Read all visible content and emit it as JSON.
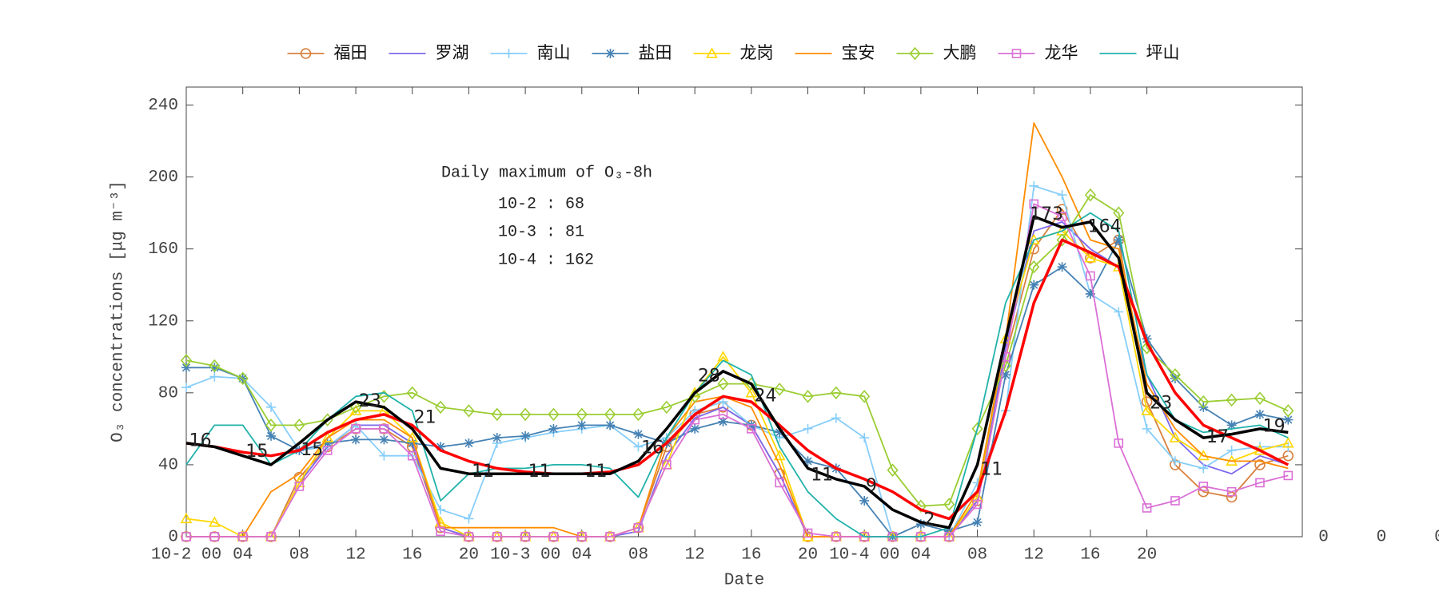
{
  "chart_data": {
    "type": "line",
    "x_label": "Date",
    "y_label": "O₃ concentrations [μg m⁻³]",
    "legend": "top",
    "text_box": {
      "title": "Daily maximum of O₃-8h",
      "lines": [
        "10-2 : 68",
        "10-3 : 81",
        "10-4 : 162"
      ]
    },
    "xlim": [
      0,
      79
    ],
    "ylim": [
      0,
      250
    ],
    "yticks": [
      0,
      40,
      80,
      120,
      160,
      200,
      240
    ],
    "xticks": [
      {
        "value": 0,
        "label": "10-2 00"
      },
      {
        "value": 4,
        "label": "04"
      },
      {
        "value": 8,
        "label": "08"
      },
      12,
      16,
      20,
      {
        "value": 24,
        "label": "10-3 00"
      },
      {
        "value": 28,
        "label": "04"
      },
      {
        "value": 32,
        "label": "08"
      },
      {
        "value": 36,
        "label": "12"
      },
      {
        "value": 40,
        "label": "16"
      },
      {
        "value": 44,
        "label": "20"
      },
      {
        "value": 48,
        "label": "10-4 00"
      },
      {
        "value": 52,
        "label": "04"
      },
      {
        "value": 56,
        "label": "08"
      },
      {
        "value": 60,
        "label": "12"
      },
      {
        "value": 64,
        "label": "16"
      },
      {
        "value": 68,
        "label": "20"
      }
    ],
    "extra_labels": [
      {
        "text": "0",
        "x": 80.5,
        "y": 0
      },
      {
        "text": "0",
        "x": 84.6,
        "y": 0
      },
      {
        "text": "0",
        "x": 88.7,
        "y": 0
      }
    ],
    "annotations": [
      {
        "text": "16",
        "x": 1,
        "y": 53
      },
      {
        "text": "15",
        "x": 5,
        "y": 47
      },
      {
        "text": "15",
        "x": 8.9,
        "y": 48
      },
      {
        "text": "23",
        "x": 13,
        "y": 75
      },
      {
        "text": "21",
        "x": 16.9,
        "y": 66
      },
      {
        "text": "11",
        "x": 21,
        "y": 36
      },
      {
        "text": "11",
        "x": 25,
        "y": 36
      },
      {
        "text": "11",
        "x": 29,
        "y": 36
      },
      {
        "text": "16",
        "x": 33,
        "y": 49
      },
      {
        "text": "28",
        "x": 37,
        "y": 89
      },
      {
        "text": "24",
        "x": 41,
        "y": 78
      },
      {
        "text": "11",
        "x": 45,
        "y": 34
      },
      {
        "text": "9",
        "x": 48.5,
        "y": 28
      },
      {
        "text": "2",
        "x": 52.6,
        "y": 9
      },
      {
        "text": "11",
        "x": 57,
        "y": 37
      },
      {
        "text": "173",
        "x": 60.9,
        "y": 179
      },
      {
        "text": "164",
        "x": 65,
        "y": 172
      },
      {
        "text": "23",
        "x": 69,
        "y": 74
      },
      {
        "text": "17",
        "x": 73,
        "y": 55
      },
      {
        "text": "19",
        "x": 77,
        "y": 61
      }
    ],
    "x": [
      0,
      2,
      4,
      6,
      8,
      10,
      12,
      14,
      16,
      18,
      20,
      22,
      24,
      26,
      28,
      30,
      32,
      34,
      36,
      38,
      40,
      42,
      44,
      46,
      48,
      50,
      52,
      54,
      56,
      58,
      60,
      62,
      64,
      66,
      68,
      70,
      72,
      74,
      76,
      78
    ],
    "series": [
      {
        "name": "福田",
        "color": "#d9803e",
        "marker": "o",
        "values": [
          0,
          0,
          0,
          0,
          33,
          50,
          60,
          60,
          50,
          5,
          0,
          0,
          0,
          0,
          0,
          0,
          5,
          50,
          68,
          72,
          62,
          35,
          0,
          0,
          0,
          0,
          0,
          0,
          20,
          100,
          160,
          182,
          155,
          165,
          75,
          40,
          25,
          22,
          40,
          45
        ]
      },
      {
        "name": "罗湖",
        "color": "#7b68ee",
        "marker": "",
        "values": [
          0,
          0,
          0,
          0,
          30,
          50,
          62,
          62,
          52,
          5,
          0,
          0,
          0,
          0,
          0,
          0,
          3,
          45,
          66,
          72,
          62,
          35,
          0,
          0,
          0,
          0,
          0,
          0,
          20,
          105,
          170,
          175,
          160,
          150,
          90,
          55,
          40,
          35,
          45,
          40
        ]
      },
      {
        "name": "南山",
        "color": "#87cefa",
        "marker": "+",
        "values": [
          83,
          89,
          88,
          72,
          48,
          50,
          62,
          45,
          45,
          15,
          10,
          52,
          55,
          58,
          60,
          62,
          50,
          55,
          70,
          75,
          62,
          55,
          60,
          66,
          55,
          0,
          0,
          0,
          30,
          70,
          195,
          190,
          135,
          125,
          60,
          42,
          38,
          48,
          50,
          50
        ]
      },
      {
        "name": "盐田",
        "color": "#4682b4",
        "marker": "*",
        "values": [
          94,
          94,
          88,
          56,
          48,
          52,
          54,
          54,
          52,
          50,
          52,
          55,
          56,
          60,
          62,
          62,
          57,
          52,
          60,
          64,
          62,
          58,
          42,
          38,
          20,
          0,
          7,
          3,
          8,
          90,
          140,
          150,
          135,
          165,
          110,
          88,
          72,
          62,
          68,
          65
        ]
      },
      {
        "name": "龙岗",
        "color": "#ffd700",
        "marker": "^",
        "values": [
          10,
          8,
          0,
          0,
          30,
          55,
          70,
          70,
          55,
          8,
          0,
          0,
          0,
          0,
          0,
          0,
          5,
          40,
          80,
          100,
          80,
          45,
          0,
          0,
          0,
          0,
          0,
          0,
          22,
          110,
          165,
          170,
          155,
          150,
          70,
          55,
          45,
          42,
          48,
          52
        ]
      },
      {
        "name": "宝安",
        "color": "#ff8c00",
        "marker": "",
        "values": [
          0,
          0,
          0,
          25,
          35,
          55,
          65,
          65,
          55,
          5,
          5,
          5,
          5,
          5,
          0,
          0,
          5,
          55,
          75,
          78,
          72,
          40,
          0,
          0,
          0,
          0,
          0,
          0,
          25,
          110,
          230,
          200,
          165,
          160,
          85,
          60,
          45,
          42,
          42,
          38
        ]
      },
      {
        "name": "大鹏",
        "color": "#9acd32",
        "marker": "d",
        "values": [
          98,
          95,
          88,
          62,
          62,
          65,
          72,
          78,
          80,
          72,
          70,
          68,
          68,
          68,
          68,
          68,
          68,
          72,
          78,
          85,
          85,
          82,
          78,
          80,
          78,
          37,
          17,
          18,
          60,
          95,
          150,
          165,
          190,
          180,
          105,
          90,
          75,
          76,
          77,
          70
        ]
      },
      {
        "name": "龙华",
        "color": "#da70d6",
        "marker": "s",
        "values": [
          0,
          0,
          0,
          0,
          28,
          48,
          60,
          60,
          45,
          3,
          0,
          0,
          0,
          0,
          0,
          0,
          5,
          40,
          65,
          68,
          60,
          30,
          2,
          0,
          0,
          0,
          0,
          0,
          18,
          100,
          185,
          178,
          145,
          52,
          16,
          20,
          28,
          25,
          30,
          34
        ]
      },
      {
        "name": "坪山",
        "color": "#20b2aa",
        "marker": "",
        "values": [
          40,
          62,
          62,
          40,
          48,
          65,
          78,
          80,
          70,
          20,
          35,
          38,
          38,
          40,
          40,
          38,
          22,
          55,
          80,
          98,
          90,
          50,
          25,
          10,
          0,
          0,
          0,
          5,
          60,
          130,
          165,
          170,
          180,
          170,
          90,
          65,
          58,
          60,
          62,
          55
        ]
      },
      {
        "color": "#ff0000",
        "marker": "",
        "width": 3.5,
        "values": [
          52,
          50,
          47,
          45,
          48,
          58,
          65,
          68,
          62,
          48,
          42,
          38,
          36,
          35,
          35,
          36,
          40,
          52,
          68,
          78,
          75,
          62,
          48,
          38,
          32,
          25,
          15,
          10,
          25,
          70,
          130,
          165,
          158,
          150,
          108,
          80,
          62,
          55,
          48,
          40
        ]
      },
      {
        "color": "#000000",
        "marker": "",
        "width": 3.5,
        "values": [
          52,
          50,
          45,
          40,
          52,
          65,
          75,
          72,
          60,
          38,
          35,
          35,
          35,
          35,
          35,
          35,
          42,
          60,
          80,
          92,
          85,
          60,
          38,
          32,
          28,
          15,
          8,
          5,
          40,
          110,
          178,
          172,
          175,
          155,
          80,
          65,
          55,
          57,
          60,
          58
        ]
      }
    ]
  }
}
